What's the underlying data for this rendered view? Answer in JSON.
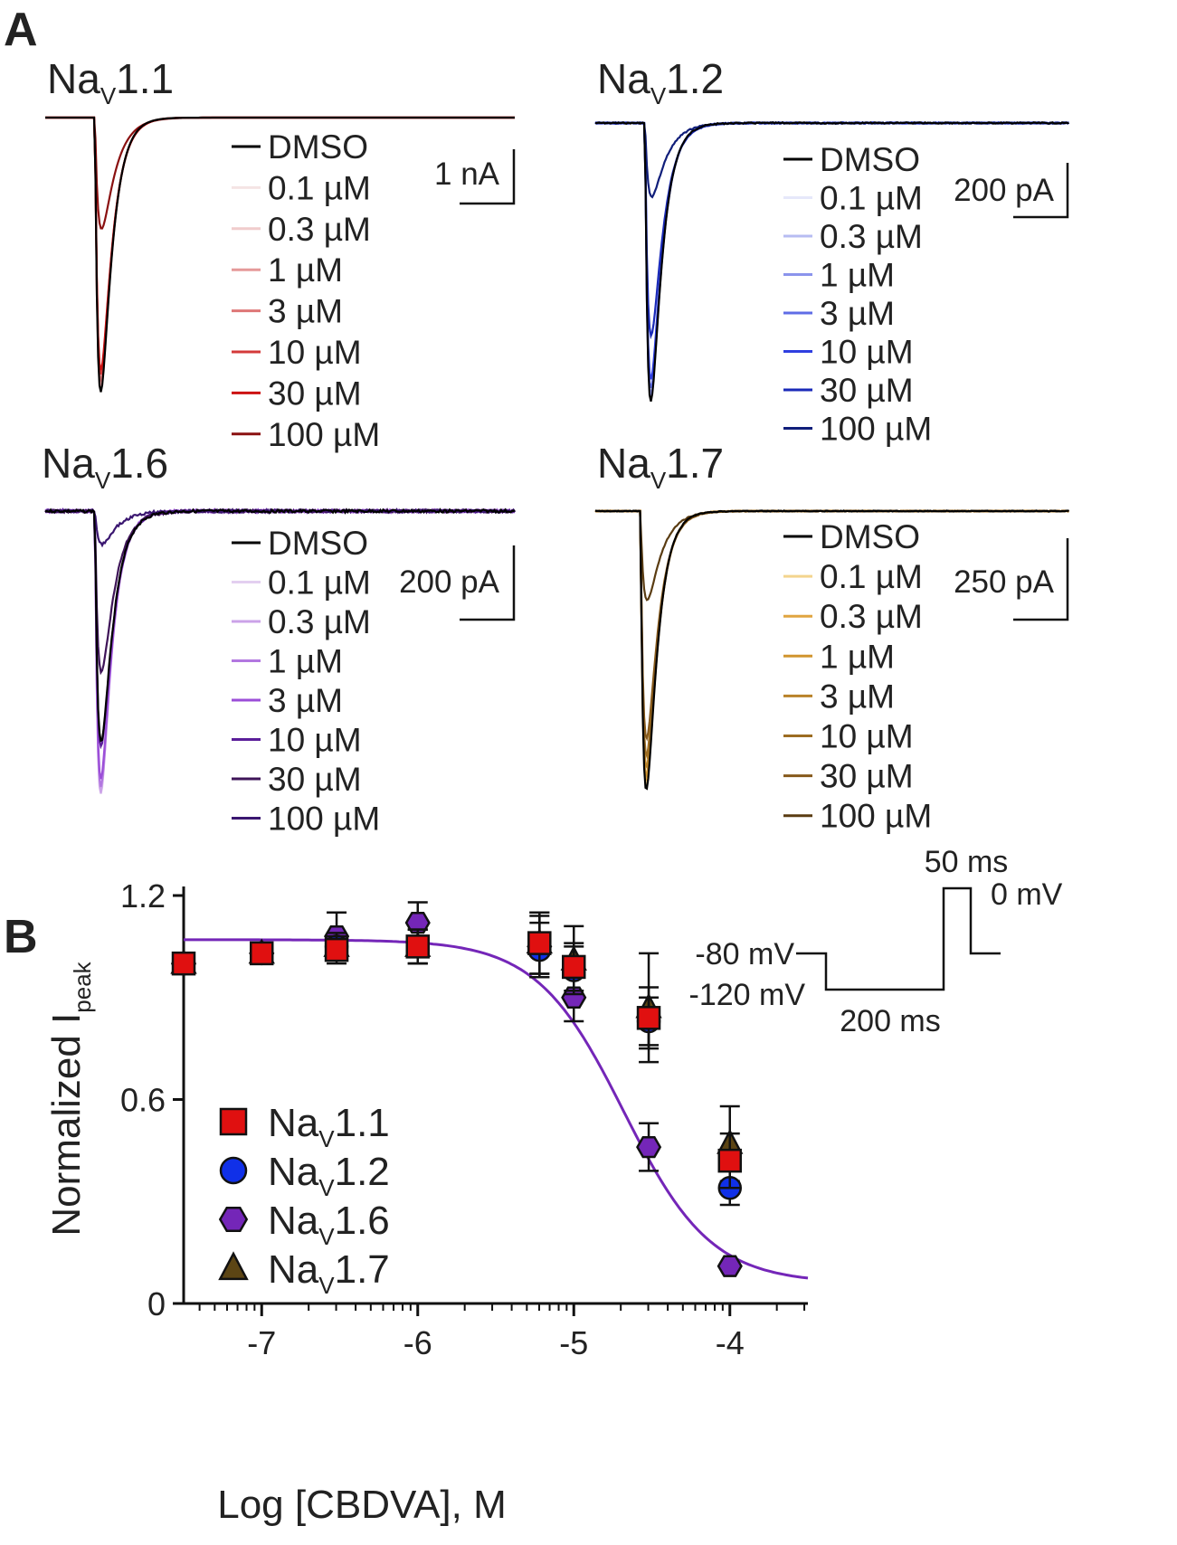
{
  "figure": {
    "panel_a_label": "A",
    "panel_b_label": "B"
  },
  "panel_a": {
    "legend_labels": [
      "DMSO",
      "0.1 µM",
      "0.3 µM",
      "1 µM",
      "3 µM",
      "10 µM",
      "30 µM",
      "100 µM"
    ],
    "channels": [
      {
        "name_main": "Na",
        "name_sub": "V",
        "name_suffix": "1.1",
        "scale_label": "1 nA",
        "colors": [
          "#000000",
          "#f4e4e4",
          "#f0cccc",
          "#e59a9a",
          "#de7676",
          "#d43a3a",
          "#cc1111",
          "#8a1010"
        ],
        "peak_depths": [
          1.0,
          1.0,
          0.99,
          0.97,
          0.95,
          0.92,
          0.9,
          0.36
        ]
      },
      {
        "name_main": "Na",
        "name_sub": "V",
        "name_suffix": "1.2",
        "scale_label": "200 pA",
        "colors": [
          "#000000",
          "#e6e8fa",
          "#b7bcf2",
          "#8b94ec",
          "#5f6ce6",
          "#2f3fe0",
          "#1a2ab8",
          "#101e7a"
        ],
        "peak_depths": [
          1.0,
          0.99,
          0.98,
          0.97,
          0.94,
          0.9,
          0.72,
          0.23
        ]
      },
      {
        "name_main": "Na",
        "name_sub": "V",
        "name_suffix": "1.6",
        "scale_label": "200 pA",
        "colors": [
          "#000000",
          "#e3cff0",
          "#cba2e8",
          "#b277e0",
          "#9b4ed8",
          "#5a1e9a",
          "#3e1458",
          "#3a1670"
        ],
        "peak_depths": [
          0.78,
          1.0,
          0.99,
          0.97,
          0.93,
          0.8,
          0.52,
          0.1
        ]
      },
      {
        "name_main": "Na",
        "name_sub": "V",
        "name_suffix": "1.7",
        "scale_label": "250 pA",
        "colors": [
          "#000000",
          "#f3d48e",
          "#e0a540",
          "#d1952f",
          "#b98228",
          "#9c6c22",
          "#86591b",
          "#5a3c12"
        ],
        "peak_depths": [
          1.0,
          0.98,
          0.96,
          0.94,
          0.9,
          0.85,
          0.78,
          0.28
        ]
      }
    ]
  },
  "chart_data": {
    "type": "scatter",
    "title": "",
    "xlabel": "Log [CBDVA], M",
    "ylabel_main": "Normalized I",
    "ylabel_sub": "peak",
    "xlim": [
      -7.5,
      -3.5
    ],
    "ylim": [
      0,
      1.2
    ],
    "x_ticks": [
      -7,
      -6,
      -5,
      -4
    ],
    "x_tick_labels": [
      "-7",
      "-6",
      "-5",
      "-4"
    ],
    "y_ticks": [
      0,
      0.6,
      1.2
    ],
    "y_tick_labels": [
      "0",
      "0.6",
      "1.2"
    ],
    "legend_position": "bottom-left",
    "series": [
      {
        "name_main": "Na",
        "name_sub": "V",
        "name_suffix": "1.1",
        "marker": "square",
        "color": "#e01010",
        "x": [
          -7.5,
          -7.0,
          -6.52,
          -6.0,
          -5.22,
          -5.0,
          -4.52,
          -4.0
        ],
        "y": [
          1.0,
          1.03,
          1.04,
          1.05,
          1.06,
          0.99,
          0.84,
          0.42
        ],
        "err": [
          0.0,
          0.02,
          0.04,
          0.05,
          0.09,
          0.07,
          0.09,
          0.08
        ]
      },
      {
        "name_main": "Na",
        "name_sub": "V",
        "name_suffix": "1.2",
        "marker": "circle",
        "color": "#1030e8",
        "x": [
          -7.5,
          -7.0,
          -6.52,
          -6.0,
          -5.22,
          -5.0,
          -4.52,
          -4.0
        ],
        "y": [
          1.0,
          1.03,
          1.05,
          1.05,
          1.04,
          0.98,
          0.83,
          0.34
        ],
        "err": [
          0.0,
          0.02,
          0.04,
          0.05,
          0.08,
          0.07,
          0.07,
          0.05
        ]
      },
      {
        "name_main": "Na",
        "name_sub": "V",
        "name_suffix": "1.6",
        "marker": "hexagon",
        "color": "#7426b8",
        "x": [
          -7.5,
          -7.0,
          -6.52,
          -6.0,
          -5.22,
          -5.0,
          -4.52,
          -4.0
        ],
        "y": [
          1.0,
          1.03,
          1.08,
          1.12,
          1.05,
          0.9,
          0.46,
          0.11
        ],
        "err": [
          0.0,
          0.02,
          0.07,
          0.06,
          0.09,
          0.07,
          0.07,
          0.0
        ]
      },
      {
        "name_main": "Na",
        "name_sub": "V",
        "name_suffix": "1.7",
        "marker": "triangle",
        "color": "#5c4514",
        "x": [
          -7.5,
          -7.0,
          -6.52,
          -6.0,
          -5.22,
          -5.0,
          -4.52,
          -4.0
        ],
        "y": [
          1.0,
          1.03,
          1.05,
          1.05,
          1.06,
          1.01,
          0.87,
          0.47
        ],
        "err": [
          0.0,
          0.02,
          0.04,
          0.05,
          0.09,
          0.1,
          0.16,
          0.11
        ]
      }
    ],
    "fit": {
      "series": "Na V 1.6",
      "color": "#7426b8",
      "top": 1.07,
      "bottom": 0.06,
      "log_ic50": -4.68,
      "hill_slope": 1.55
    }
  },
  "protocol": {
    "label_hold": "-80 mV",
    "label_prepulse": "-120 mV",
    "label_prepulse_duration": "200 ms",
    "label_test_duration": "50 ms",
    "label_test": "0 mV"
  }
}
